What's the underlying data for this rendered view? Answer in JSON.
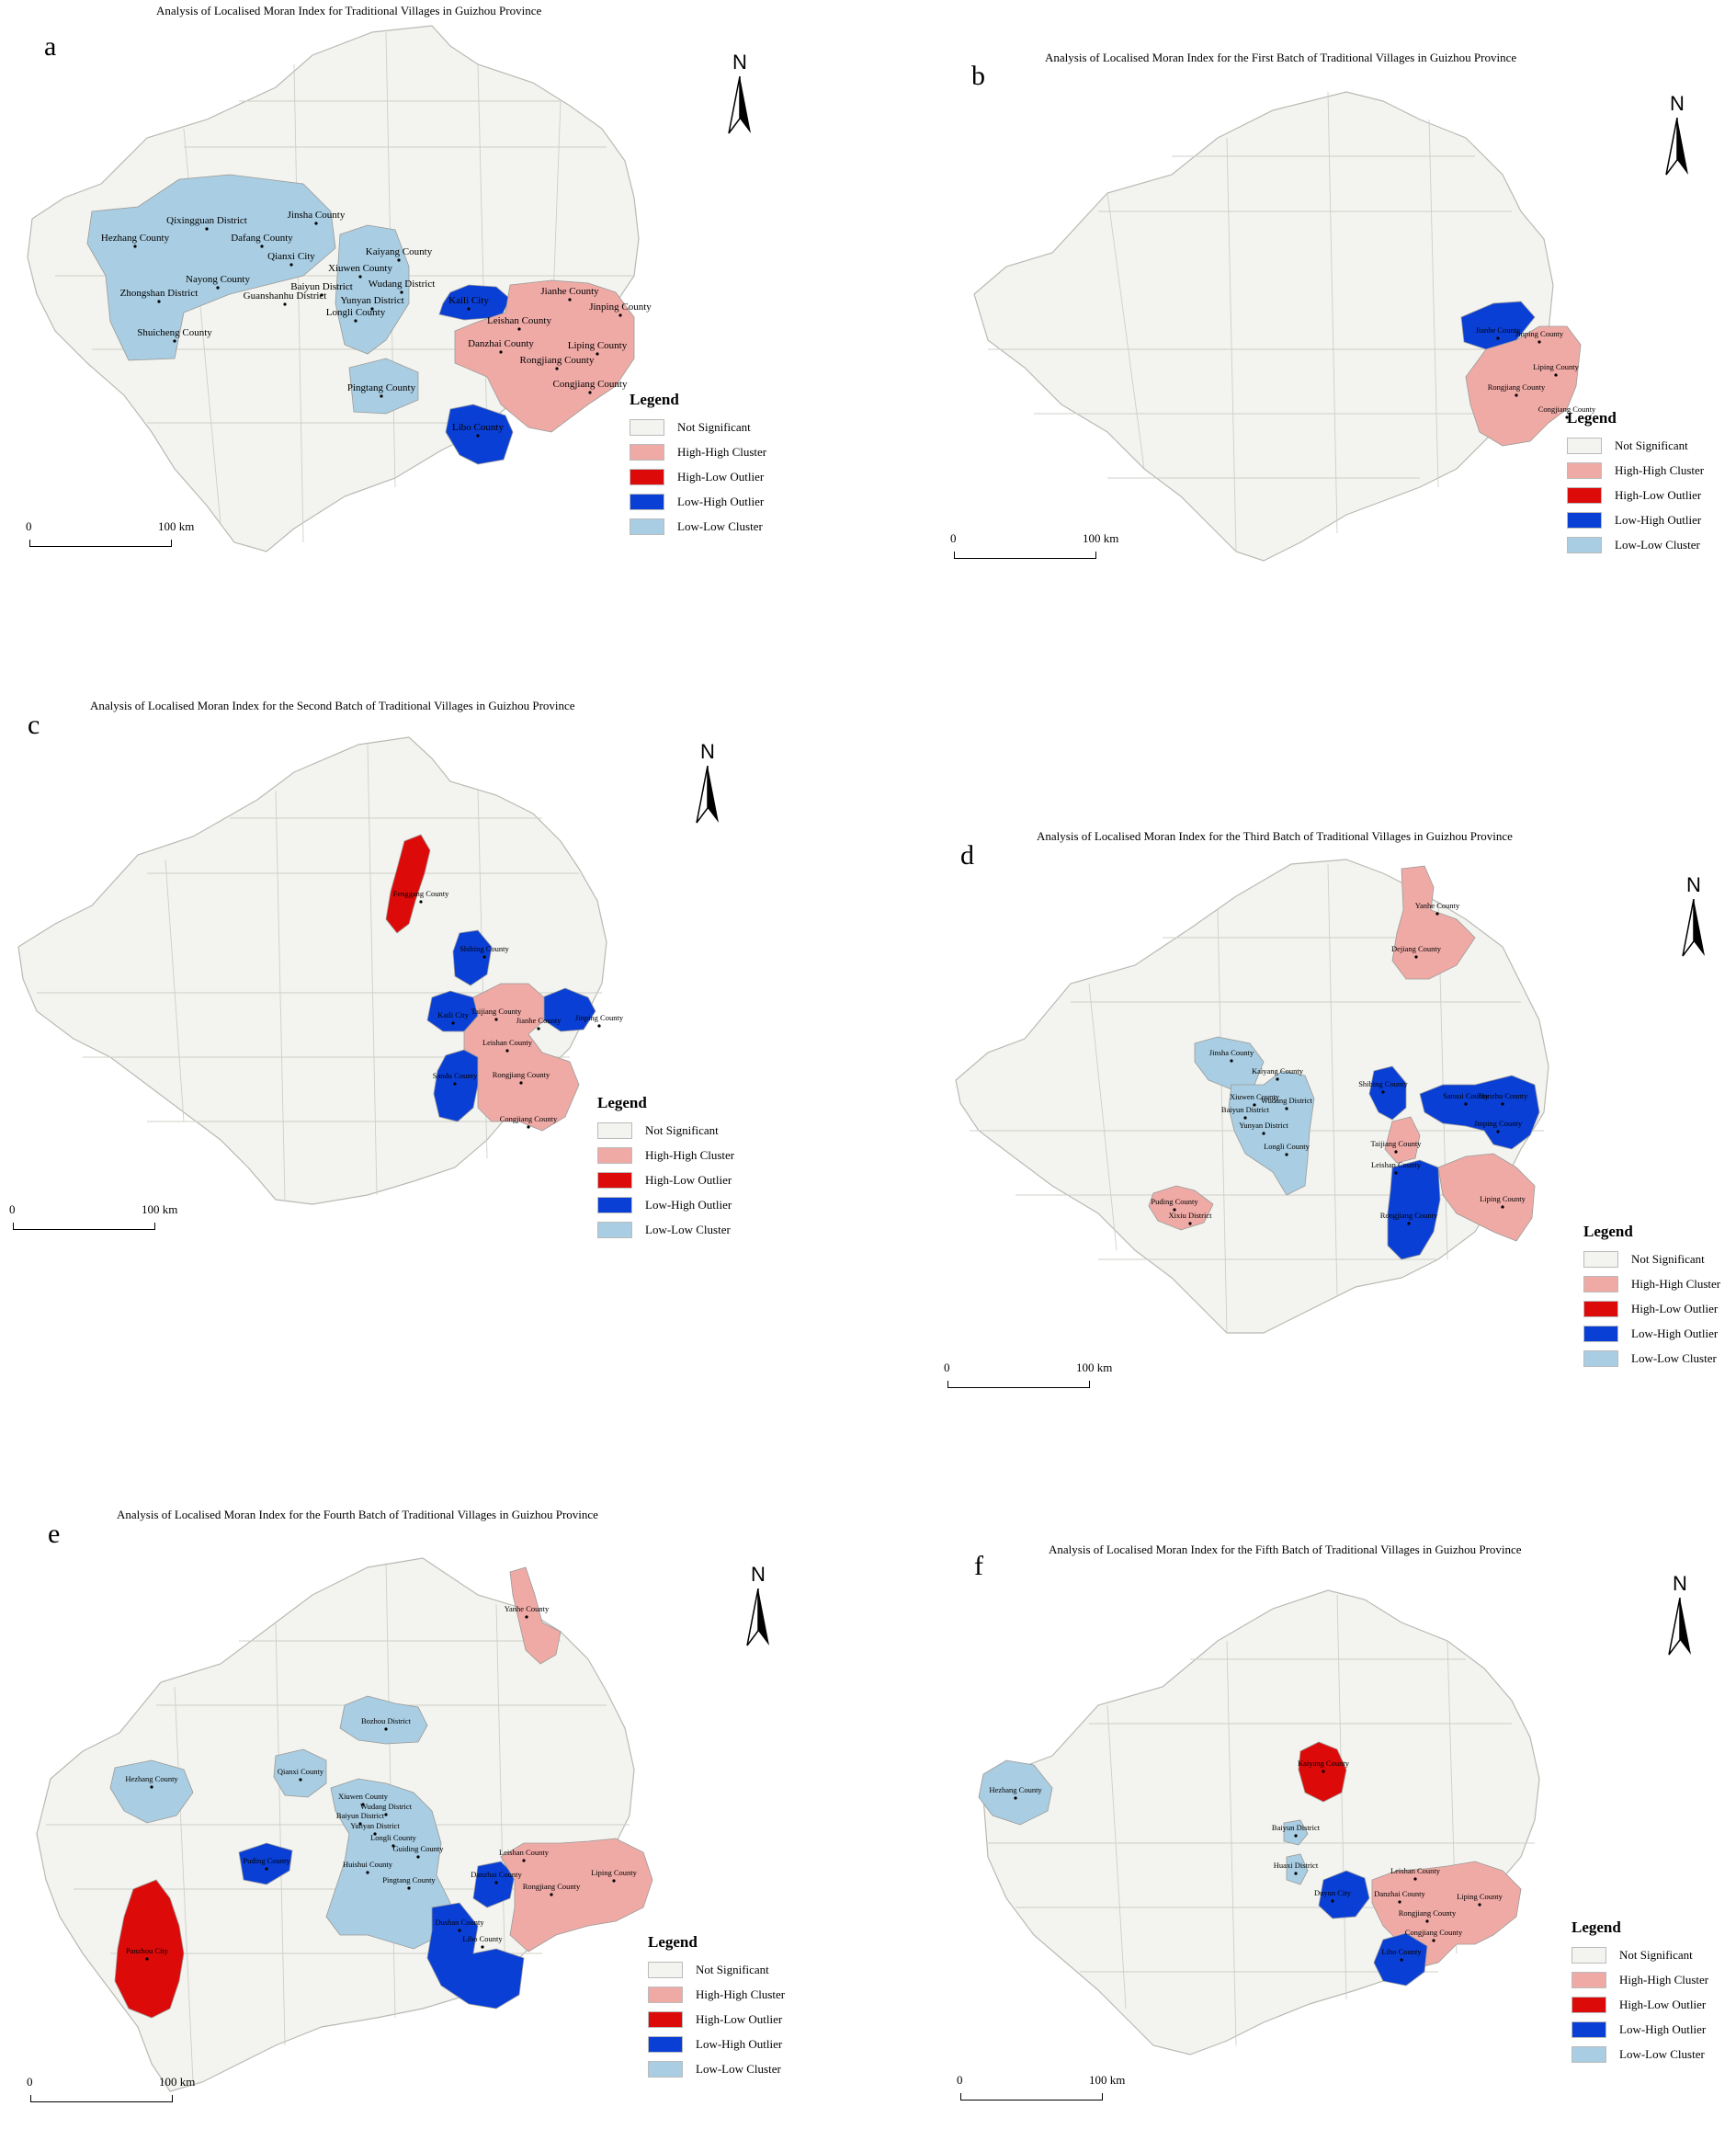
{
  "legend": {
    "title": "Legend",
    "items": [
      {
        "label": "Not Significant",
        "color": "#f3f3ef"
      },
      {
        "label": "High-High Cluster",
        "color": "#f0aaa6"
      },
      {
        "label": "High-Low Outlier",
        "color": "#dd0a0a"
      },
      {
        "label": "Low-High Outlier",
        "color": "#0a3fd6"
      },
      {
        "label": "Low-Low Cluster",
        "color": "#a9cde2"
      }
    ]
  },
  "north_label": "N",
  "scale": {
    "start": "0",
    "end": "100 km"
  },
  "panels": [
    {
      "letter": "a",
      "title": "Analysis of Localised Moran Index for Traditional Villages in Guizhou Province",
      "regions": [
        {
          "cls": "ll",
          "labels": [
            "Hezhang County",
            "Qixingguan District",
            "Jinsha County",
            "Dafang County",
            "Qianxi City",
            "Nayong County",
            "Zhongshan District",
            "Shuicheng County"
          ]
        },
        {
          "cls": "ll",
          "labels": [
            "Kaiyang County",
            "Xiuwen County",
            "Wudang District",
            "Baiyun District",
            "Guanshanhu District",
            "Yunyan District",
            "Longli County"
          ]
        },
        {
          "cls": "ll",
          "labels": [
            "Pingtang County"
          ]
        },
        {
          "cls": "lh",
          "labels": [
            "Kaili City"
          ]
        },
        {
          "cls": "lh",
          "labels": [
            "Libo County"
          ]
        },
        {
          "cls": "hh",
          "labels": [
            "Jianhe County",
            "Jinping County",
            "Leishan County",
            "Danzhai County",
            "Liping County",
            "Rongjiang County",
            "Congjiang County"
          ]
        }
      ]
    },
    {
      "letter": "b",
      "title": "Analysis of Localised Moran Index for the First Batch of Traditional Villages in Guizhou Province",
      "regions": [
        {
          "cls": "lh",
          "labels": [
            "Jianhe County"
          ]
        },
        {
          "cls": "hh",
          "labels": [
            "Jinping County",
            "Liping County",
            "Rongjiang County",
            "Congjiang County"
          ]
        }
      ]
    },
    {
      "letter": "c",
      "title": "Analysis of Localised Moran Index for the Second Batch of Traditional Villages in Guizhou Province",
      "regions": [
        {
          "cls": "hl",
          "labels": [
            "Fenggang County"
          ]
        },
        {
          "cls": "lh",
          "labels": [
            "Shibing County"
          ]
        },
        {
          "cls": "lh",
          "labels": [
            "Kaili City"
          ]
        },
        {
          "cls": "lh",
          "labels": [
            "Jinping County"
          ]
        },
        {
          "cls": "lh",
          "labels": [
            "Sandu County"
          ]
        },
        {
          "cls": "hh",
          "labels": [
            "Taijiang County",
            "Jianhe County",
            "Leishan County",
            "Rongjiang County",
            "Congjiang County"
          ]
        }
      ]
    },
    {
      "letter": "d",
      "title": "Analysis of Localised Moran Index for the Third Batch of Traditional Villages in Guizhou Province",
      "regions": [
        {
          "cls": "hh",
          "labels": [
            "Yanhe County",
            "Dejiang County"
          ]
        },
        {
          "cls": "ll",
          "labels": [
            "Jinsha County"
          ]
        },
        {
          "cls": "ll",
          "labels": [
            "Kaiyang County",
            "Xiuwen County",
            "Wudang District",
            "Baiyun District",
            "Yunyan District",
            "Longli County"
          ]
        },
        {
          "cls": "lh",
          "labels": [
            "Shibing County"
          ]
        },
        {
          "cls": "lh",
          "labels": [
            "Sansui County",
            "Tianzhu County",
            "Jinping County"
          ]
        },
        {
          "cls": "hh",
          "labels": [
            "Taijiang County",
            "Leishan County"
          ]
        },
        {
          "cls": "lh",
          "labels": [
            "Rongjiang County"
          ]
        },
        {
          "cls": "hh",
          "labels": [
            "Liping County"
          ]
        },
        {
          "cls": "hh",
          "labels": [
            "Puding County",
            "Xixiu District"
          ]
        }
      ]
    },
    {
      "letter": "e",
      "title": "Analysis of Localised Moran Index for the Fourth Batch of Traditional Villages in Guizhou Province",
      "regions": [
        {
          "cls": "hh",
          "labels": [
            "Yanhe County"
          ]
        },
        {
          "cls": "ll",
          "labels": [
            "Bozhou District"
          ]
        },
        {
          "cls": "ll",
          "labels": [
            "Hezhang County"
          ]
        },
        {
          "cls": "ll",
          "labels": [
            "Qianxi County"
          ]
        },
        {
          "cls": "ll",
          "labels": [
            "Xiuwen County",
            "Wudang District",
            "Baiyun District",
            "Yunyan District",
            "Longli County",
            "Guiding County",
            "Huishui County",
            "Pingtang County"
          ]
        },
        {
          "cls": "lh",
          "labels": [
            "Puding County"
          ]
        },
        {
          "cls": "hl",
          "labels": [
            "Panzhou City"
          ]
        },
        {
          "cls": "lh",
          "labels": [
            "Danzhai County"
          ]
        },
        {
          "cls": "lh",
          "labels": [
            "Dushan County",
            "Libo County"
          ]
        },
        {
          "cls": "hh",
          "labels": [
            "Leishan County",
            "Liping County",
            "Rongjiang County"
          ]
        }
      ]
    },
    {
      "letter": "f",
      "title": "Analysis of Localised Moran Index for the Fifth Batch of Traditional Villages in Guizhou Province",
      "regions": [
        {
          "cls": "ll",
          "labels": [
            "Hezhang County"
          ]
        },
        {
          "cls": "hl",
          "labels": [
            "Kaiyang County"
          ]
        },
        {
          "cls": "ll",
          "labels": [
            "Baiyun District"
          ]
        },
        {
          "cls": "ll",
          "labels": [
            "Huaxi District"
          ]
        },
        {
          "cls": "lh",
          "labels": [
            "Duyun City"
          ]
        },
        {
          "cls": "hh",
          "labels": [
            "Leishan County",
            "Danzhai County",
            "Liping County",
            "Rongjiang County",
            "Congjiang County"
          ]
        },
        {
          "cls": "lh",
          "labels": [
            "Libo County"
          ]
        }
      ]
    }
  ]
}
